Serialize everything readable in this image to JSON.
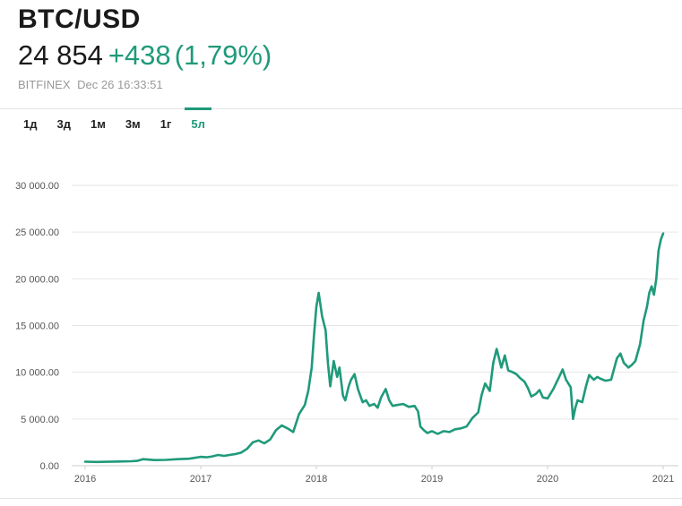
{
  "header": {
    "symbol": "BTC/USD",
    "price": "24 854",
    "change": "+438",
    "change_pct": "(1,79%)",
    "exchange": "BITFINEX",
    "timestamp": "Dec 26 16:33:51"
  },
  "tabs": [
    {
      "label": "1д",
      "active": false
    },
    {
      "label": "3д",
      "active": false
    },
    {
      "label": "1м",
      "active": false
    },
    {
      "label": "3м",
      "active": false
    },
    {
      "label": "1г",
      "active": false
    },
    {
      "label": "5л",
      "active": true
    }
  ],
  "colors": {
    "accent": "#1f9a7a",
    "line": "#1f9a7a",
    "grid": "#e6e6e6"
  },
  "chart_data": {
    "type": "line",
    "title": "",
    "xlabel": "",
    "ylabel": "",
    "ylim": [
      0,
      30000
    ],
    "grid": true,
    "yticks": [
      {
        "value": 0,
        "label": "0.00"
      },
      {
        "value": 5000,
        "label": "5 000.00"
      },
      {
        "value": 10000,
        "label": "10 000.00"
      },
      {
        "value": 15000,
        "label": "15 000.00"
      },
      {
        "value": 20000,
        "label": "20 000.00"
      },
      {
        "value": 25000,
        "label": "25 000.00"
      },
      {
        "value": 30000,
        "label": "30 000.00"
      }
    ],
    "xticks": [
      {
        "value": 2016,
        "label": "2016"
      },
      {
        "value": 2017,
        "label": "2017"
      },
      {
        "value": 2018,
        "label": "2018"
      },
      {
        "value": 2019,
        "label": "2019"
      },
      {
        "value": 2020,
        "label": "2020"
      },
      {
        "value": 2021,
        "label": "2021"
      }
    ],
    "xlim": [
      2016,
      2021
    ],
    "series": [
      {
        "x": [
          2016.0,
          2016.1,
          2016.2,
          2016.3,
          2016.4,
          2016.45,
          2016.5,
          2016.55,
          2016.6,
          2016.7,
          2016.8,
          2016.9,
          2017.0,
          2017.05,
          2017.1,
          2017.15,
          2017.2,
          2017.3,
          2017.35,
          2017.4,
          2017.45,
          2017.5,
          2017.55,
          2017.6,
          2017.65,
          2017.7,
          2017.75,
          2017.8,
          2017.85,
          2017.9,
          2017.93,
          2017.96,
          2017.98,
          2018.0,
          2018.02,
          2018.05,
          2018.08,
          2018.1,
          2018.12,
          2018.15,
          2018.18,
          2018.2,
          2018.23,
          2018.25,
          2018.28,
          2018.3,
          2018.33,
          2018.36,
          2018.4,
          2018.43,
          2018.46,
          2018.5,
          2018.53,
          2018.56,
          2018.6,
          2018.63,
          2018.66,
          2018.7,
          2018.75,
          2018.8,
          2018.85,
          2018.88,
          2018.9,
          2018.93,
          2018.96,
          2019.0,
          2019.05,
          2019.1,
          2019.15,
          2019.2,
          2019.25,
          2019.3,
          2019.35,
          2019.4,
          2019.43,
          2019.46,
          2019.5,
          2019.53,
          2019.56,
          2019.6,
          2019.63,
          2019.66,
          2019.7,
          2019.73,
          2019.76,
          2019.8,
          2019.83,
          2019.86,
          2019.9,
          2019.93,
          2019.96,
          2020.0,
          2020.05,
          2020.1,
          2020.13,
          2020.16,
          2020.2,
          2020.22,
          2020.24,
          2020.26,
          2020.3,
          2020.33,
          2020.36,
          2020.4,
          2020.43,
          2020.46,
          2020.5,
          2020.55,
          2020.6,
          2020.63,
          2020.66,
          2020.7,
          2020.73,
          2020.76,
          2020.8,
          2020.83,
          2020.86,
          2020.88,
          2020.9,
          2020.92,
          2020.94,
          2020.96,
          2020.98,
          2021.0
        ],
        "y": [
          430,
          400,
          420,
          450,
          480,
          520,
          700,
          650,
          600,
          620,
          700,
          750,
          950,
          900,
          1000,
          1150,
          1050,
          1250,
          1400,
          1800,
          2500,
          2700,
          2400,
          2800,
          3800,
          4300,
          4000,
          3600,
          5500,
          6500,
          8000,
          10500,
          14000,
          17000,
          18500,
          16000,
          14500,
          11000,
          8500,
          11200,
          9500,
          10500,
          7500,
          7000,
          8500,
          9200,
          9800,
          8200,
          6800,
          7000,
          6400,
          6600,
          6200,
          7300,
          8200,
          7000,
          6400,
          6500,
          6600,
          6300,
          6400,
          5800,
          4200,
          3800,
          3500,
          3700,
          3400,
          3700,
          3600,
          3900,
          4000,
          4200,
          5100,
          5700,
          7600,
          8800,
          8000,
          11000,
          12500,
          10500,
          11800,
          10200,
          10000,
          9800,
          9400,
          9000,
          8300,
          7400,
          7700,
          8100,
          7300,
          7200,
          8200,
          9500,
          10300,
          9200,
          8400,
          5000,
          6200,
          7000,
          6800,
          8400,
          9700,
          9200,
          9500,
          9300,
          9100,
          9200,
          11500,
          12000,
          11000,
          10500,
          10800,
          11200,
          13000,
          15500,
          17000,
          18500,
          19200,
          18300,
          20000,
          23000,
          24200,
          24854
        ]
      }
    ]
  }
}
